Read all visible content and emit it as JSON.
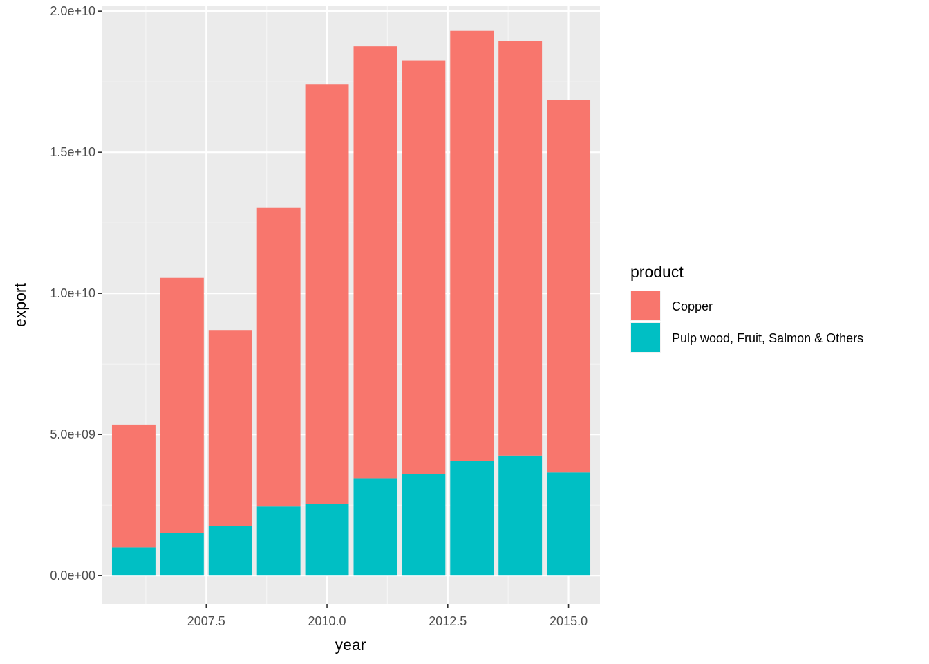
{
  "chart_data": {
    "type": "bar",
    "stacked": true,
    "title": "",
    "xlabel": "year",
    "ylabel": "export",
    "x": [
      2006,
      2007,
      2008,
      2009,
      2010,
      2011,
      2012,
      2013,
      2014,
      2015
    ],
    "series": [
      {
        "name": "Pulp wood, Fruit, Salmon & Others",
        "color": "#00BFC4",
        "values": [
          1000000000.0,
          1500000000.0,
          1750000000.0,
          2450000000.0,
          2550000000.0,
          3450000000.0,
          3600000000.0,
          4050000000.0,
          4250000000.0,
          3650000000.0
        ]
      },
      {
        "name": "Copper",
        "color": "#F8766D",
        "values": [
          4350000000.0,
          9050000000.0,
          6950000000.0,
          10600000000.0,
          14850000000.0,
          15300000000.0,
          14650000000.0,
          15250000000.0,
          14700000000.0,
          13200000000.0
        ]
      }
    ],
    "xlim": [
      2005.35,
      2015.65
    ],
    "ylim": [
      -1000000000.0,
      20200000000.0
    ],
    "x_ticks": [
      2007.5,
      2010.0,
      2012.5,
      2015.0
    ],
    "x_tick_labels": [
      "2007.5",
      "2010.0",
      "2012.5",
      "2015.0"
    ],
    "y_ticks": [
      0,
      5000000000.0,
      10000000000.0,
      15000000000.0,
      20000000000.0
    ],
    "y_tick_labels": [
      "0.0e+00",
      "5.0e+09",
      "1.0e+10",
      "1.5e+10",
      "2.0e+10"
    ],
    "grid": true,
    "legend": {
      "title": "product",
      "position": "right",
      "entries": [
        {
          "label": "Copper",
          "color": "#F8766D"
        },
        {
          "label": "Pulp wood, Fruit, Salmon & Others",
          "color": "#00BFC4"
        }
      ]
    }
  }
}
